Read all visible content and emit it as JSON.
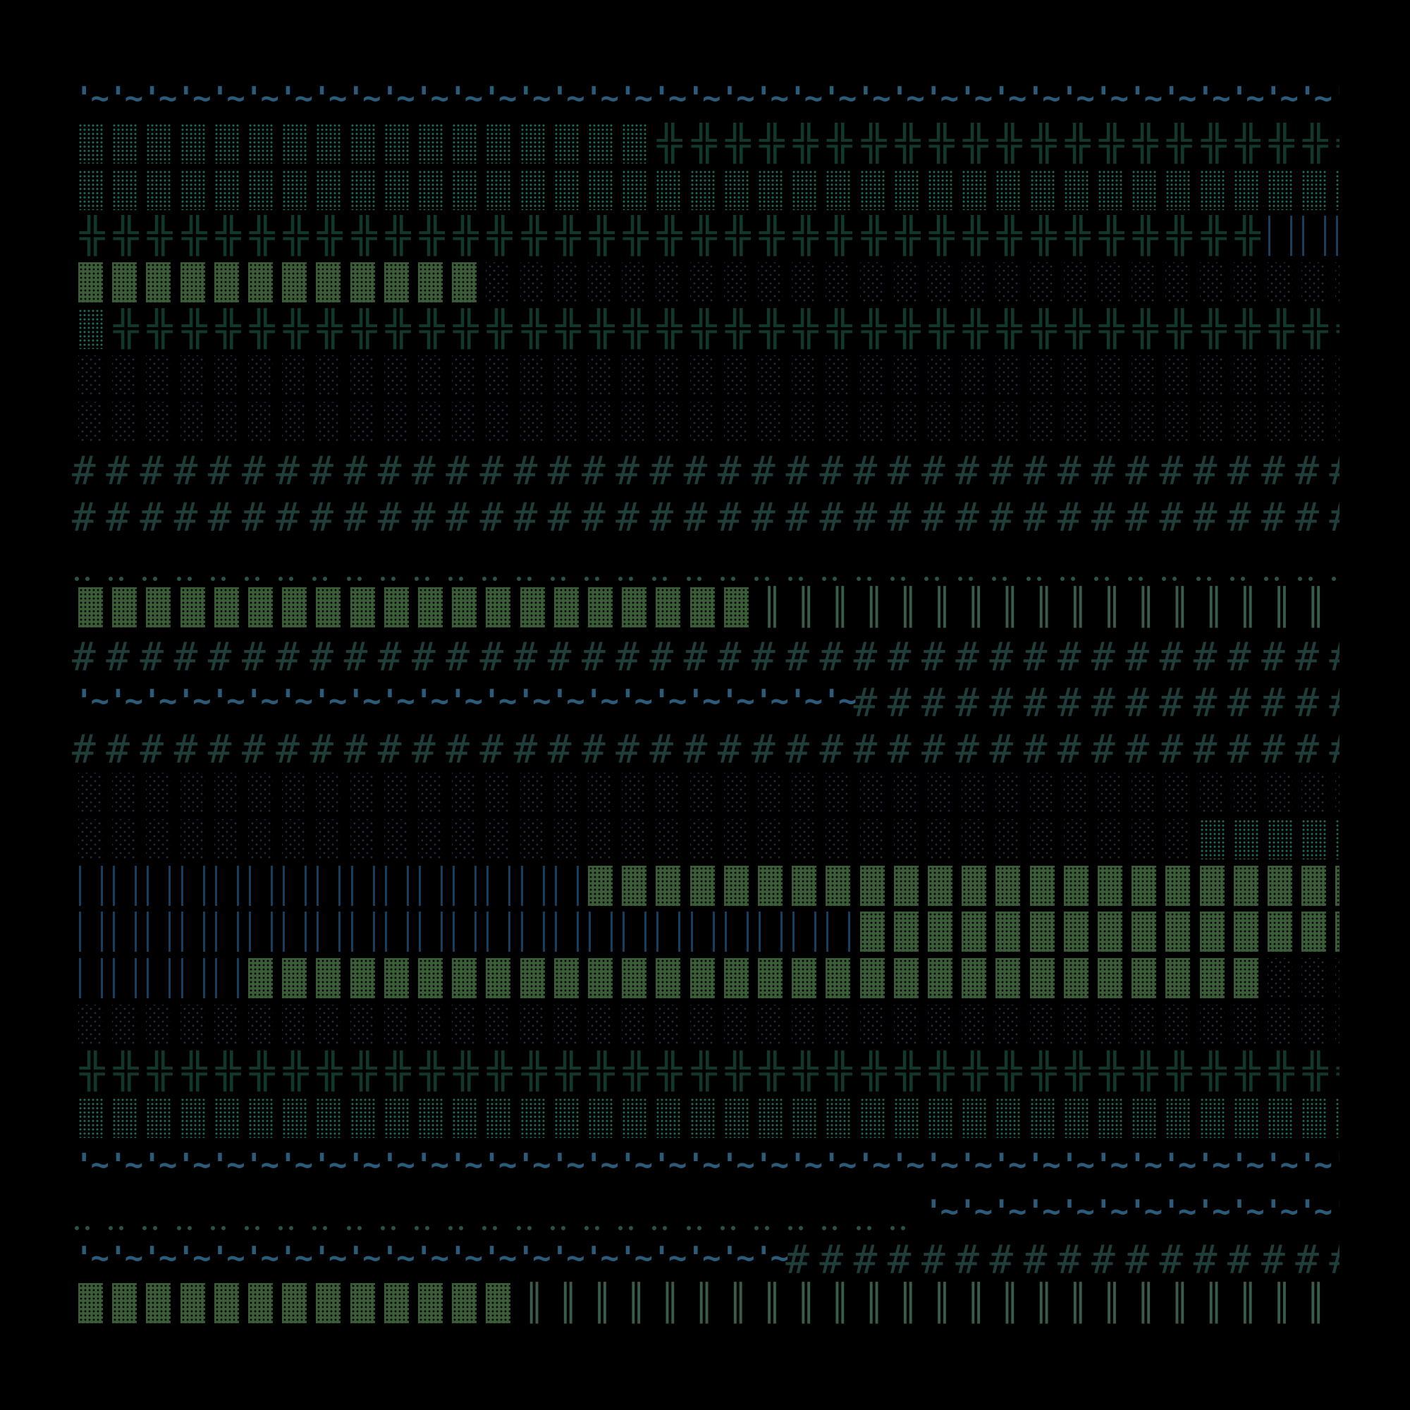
{
  "glyphs": {
    "wave": {
      "char": "'~",
      "render": "text",
      "color": "#2b5b78"
    },
    "medium": {
      "char": "▒",
      "render": "medium",
      "color": "#1f6b5c"
    },
    "cross": {
      "char": "╬",
      "render": "text",
      "color": "#12372b"
    },
    "dense": {
      "char": "▓",
      "render": "dense",
      "color": "#3a5d37"
    },
    "light": {
      "char": "░",
      "render": "light",
      "color": "#2b2a3c"
    },
    "hash": {
      "char": "#",
      "render": "text",
      "color": "#1f3e3a"
    },
    "dots": {
      "char": "··",
      "render": "dots",
      "color": "#2a5248"
    },
    "dbar": {
      "char": "║",
      "render": "text",
      "color": "#3a5a4a"
    },
    "bars": {
      "char": "||",
      "render": "bars",
      "color": "#163e5e"
    }
  },
  "grid": {
    "columns": 38,
    "rows": [
      [
        [
          "wave",
          38
        ]
      ],
      [
        [
          "medium",
          17
        ],
        [
          "cross",
          21
        ]
      ],
      [
        [
          "medium",
          38
        ]
      ],
      [
        [
          "cross",
          35
        ],
        [
          "bars",
          3
        ]
      ],
      [
        [
          "dense",
          12
        ],
        [
          "light",
          26
        ]
      ],
      [
        [
          "medium",
          1
        ],
        [
          "cross",
          37
        ]
      ],
      [
        [
          "light",
          38
        ]
      ],
      [
        [
          "light",
          38
        ]
      ],
      [
        [
          "hash",
          38
        ]
      ],
      [
        [
          "hash",
          38
        ]
      ],
      [
        [
          "dots",
          38
        ]
      ],
      [
        [
          "dense",
          20
        ],
        [
          "dbar",
          18
        ]
      ],
      [
        [
          "hash",
          38
        ]
      ],
      [
        [
          "wave",
          23
        ],
        [
          "hash",
          15
        ]
      ],
      [
        [
          "hash",
          38
        ]
      ],
      [
        [
          "light",
          38
        ]
      ],
      [
        [
          "light",
          33
        ],
        [
          "medium",
          5
        ]
      ],
      [
        [
          "bars",
          15
        ],
        [
          "dense",
          23
        ]
      ],
      [
        [
          "bars",
          23
        ],
        [
          "dense",
          15
        ]
      ],
      [
        [
          "bars",
          5
        ],
        [
          "dense",
          30
        ],
        [
          "light",
          3
        ]
      ],
      [
        [
          "light",
          38
        ]
      ],
      [
        [
          "cross",
          38
        ]
      ],
      [
        [
          "medium",
          38
        ]
      ],
      [
        [
          "wave",
          38
        ]
      ],
      [
        [
          "dots",
          25
        ],
        [
          "wave",
          13
        ]
      ],
      [
        [
          "wave",
          21
        ],
        [
          "hash",
          17
        ]
      ],
      [
        [
          "dense",
          13
        ],
        [
          "dbar",
          25
        ]
      ]
    ]
  }
}
